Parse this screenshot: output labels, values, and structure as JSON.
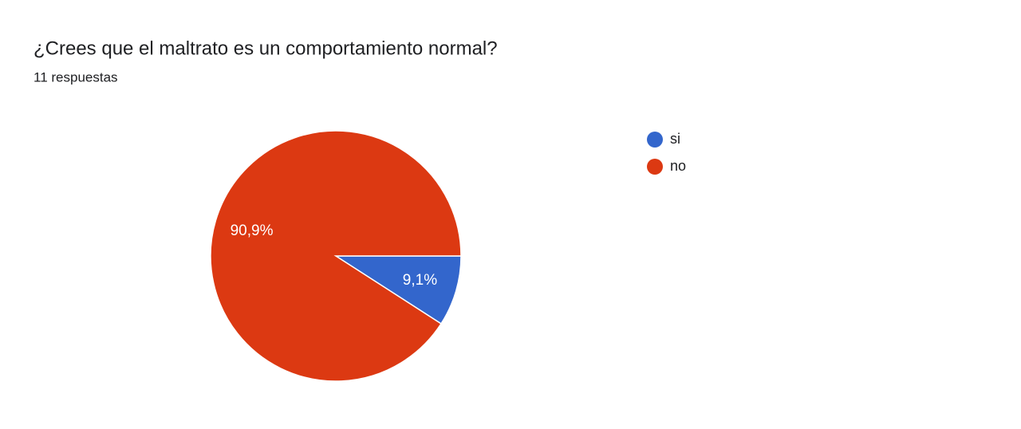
{
  "chart_data": {
    "type": "pie",
    "title": "¿Crees que el maltrato es un comportamiento normal?",
    "subtitle": "11 respuestas",
    "categories": [
      "si",
      "no"
    ],
    "values": [
      9.1,
      90.9
    ],
    "value_labels": [
      "9,1%",
      "90,9%"
    ],
    "colors": [
      "#3366cc",
      "#dc3912"
    ],
    "legend": "right"
  }
}
